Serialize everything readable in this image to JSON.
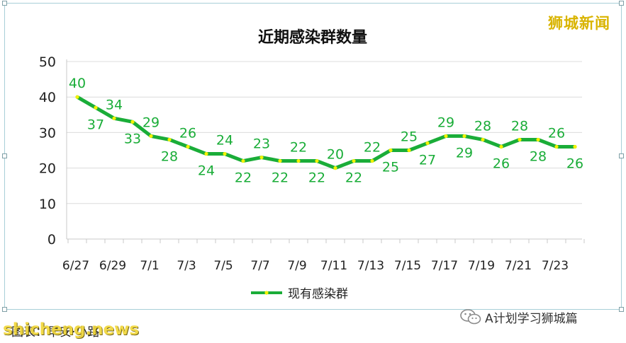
{
  "watermark": {
    "brand_top": "狮城新闻",
    "credit": "图表：早安·小路",
    "brand_bottom": "shicheng.news",
    "wechat_text": "A计划学习狮城篇",
    "wechat_icon": "wechat-icon"
  },
  "chart_data": {
    "type": "line",
    "title": "近期感染群数量",
    "xlabel": "",
    "ylabel": "",
    "ylim": [
      0,
      50
    ],
    "yticks": [
      0,
      10,
      20,
      30,
      40,
      50
    ],
    "grid": true,
    "legend_position": "bottom",
    "categories": [
      "6/27",
      "6/28",
      "6/29",
      "6/30",
      "7/1",
      "7/2",
      "7/3",
      "7/4",
      "7/5",
      "7/6",
      "7/7",
      "7/8",
      "7/9",
      "7/10",
      "7/11",
      "7/12",
      "7/13",
      "7/14",
      "7/15",
      "7/16",
      "7/17",
      "7/18",
      "7/19",
      "7/20",
      "7/21",
      "7/22",
      "7/23",
      "7/24"
    ],
    "tick_labels": [
      "6/27",
      "6/29",
      "7/1",
      "7/3",
      "7/5",
      "7/7",
      "7/9",
      "7/11",
      "7/13",
      "7/15",
      "7/17",
      "7/19",
      "7/21",
      "7/23"
    ],
    "series": [
      {
        "name": "现有感染群",
        "color": "#1aad38",
        "marker_color": "#f2f200",
        "values": [
          40,
          37,
          34,
          33,
          29,
          28,
          26,
          24,
          24,
          22,
          23,
          22,
          22,
          22,
          20,
          22,
          22,
          25,
          25,
          27,
          29,
          29,
          28,
          26,
          28,
          28,
          26,
          26
        ]
      }
    ],
    "label_color": "#1aad38"
  }
}
